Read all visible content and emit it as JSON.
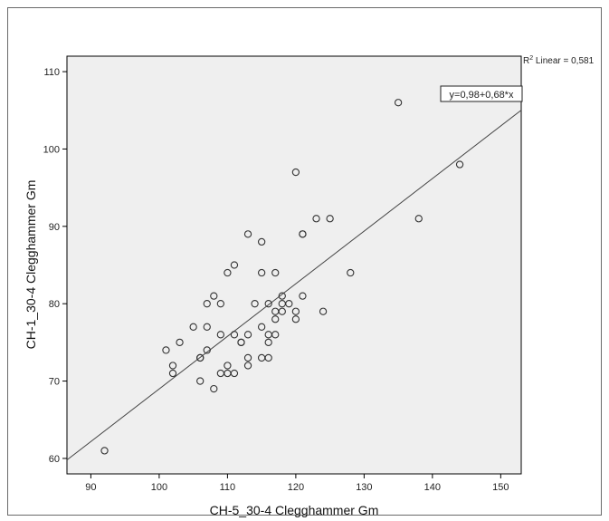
{
  "chart_data": {
    "type": "scatter",
    "xlabel": "CH-5_30-4 Clegghammer Gm",
    "ylabel": "CH-1_30-4 Clegghammer Gm",
    "xlim": [
      86.5,
      153
    ],
    "ylim": [
      58,
      112
    ],
    "xticks": [
      90,
      100,
      110,
      120,
      130,
      140,
      150
    ],
    "yticks": [
      60,
      70,
      80,
      90,
      100,
      110
    ],
    "grid": false,
    "background_color": "#efefef",
    "point_color": "#333333",
    "line_color": "#444444",
    "fit_line": {
      "intercept": 0.98,
      "slope": 0.68
    },
    "equation_label": "y=0,98+0,68*x",
    "r2_label": {
      "prefix": "R",
      "sup": "2",
      "text": " Linear = 0,581"
    },
    "points": [
      [
        92,
        61
      ],
      [
        101,
        74
      ],
      [
        102,
        72
      ],
      [
        102,
        71
      ],
      [
        103,
        75
      ],
      [
        105,
        77
      ],
      [
        106,
        73
      ],
      [
        106,
        73
      ],
      [
        106,
        70
      ],
      [
        107,
        80
      ],
      [
        107,
        77
      ],
      [
        107,
        74
      ],
      [
        108,
        81
      ],
      [
        108,
        69
      ],
      [
        109,
        80
      ],
      [
        109,
        76
      ],
      [
        109,
        71
      ],
      [
        110,
        84
      ],
      [
        110,
        72
      ],
      [
        110,
        71
      ],
      [
        111,
        85
      ],
      [
        111,
        76
      ],
      [
        111,
        71
      ],
      [
        112,
        75
      ],
      [
        112,
        75
      ],
      [
        113,
        89
      ],
      [
        113,
        76
      ],
      [
        113,
        73
      ],
      [
        113,
        72
      ],
      [
        114,
        80
      ],
      [
        115,
        88
      ],
      [
        115,
        84
      ],
      [
        115,
        77
      ],
      [
        115,
        73
      ],
      [
        116,
        80
      ],
      [
        116,
        76
      ],
      [
        116,
        75
      ],
      [
        116,
        73
      ],
      [
        117,
        84
      ],
      [
        117,
        79
      ],
      [
        117,
        78
      ],
      [
        117,
        76
      ],
      [
        118,
        81
      ],
      [
        118,
        80
      ],
      [
        118,
        79
      ],
      [
        119,
        80
      ],
      [
        120,
        97
      ],
      [
        120,
        79
      ],
      [
        120,
        78
      ],
      [
        121,
        89
      ],
      [
        121,
        89
      ],
      [
        121,
        81
      ],
      [
        123,
        91
      ],
      [
        124,
        79
      ],
      [
        125,
        91
      ],
      [
        128,
        84
      ],
      [
        135,
        106
      ],
      [
        138,
        91
      ],
      [
        144,
        98
      ]
    ]
  }
}
